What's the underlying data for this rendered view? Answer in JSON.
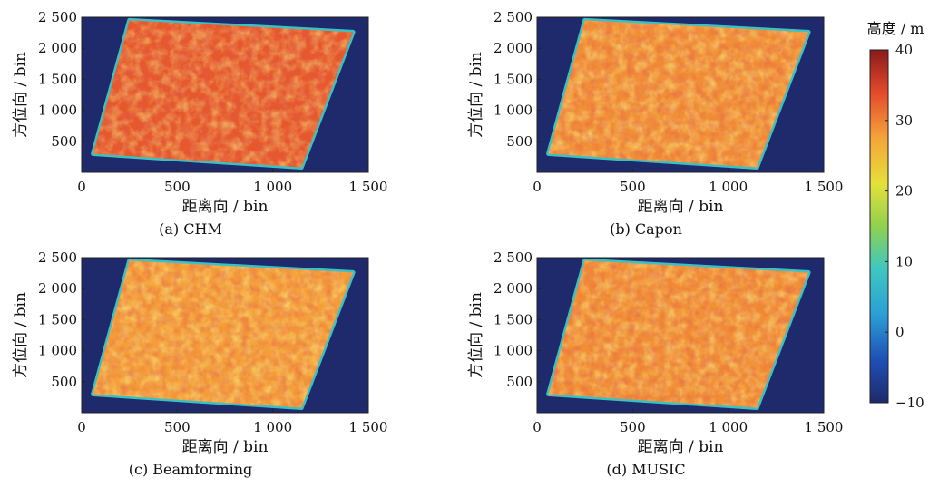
{
  "chart_data": [
    {
      "type": "heatmap",
      "caption": "(a)  CHM",
      "xlabel": "距离向 / bin",
      "ylabel": "方位向 / bin",
      "xlim": [
        0,
        1500
      ],
      "ylim": [
        0,
        2500
      ],
      "xticks": [
        0,
        500,
        1000,
        1500
      ],
      "xtick_labels": [
        "0",
        "500",
        "1 000",
        "1 500"
      ],
      "yticks": [
        500,
        1000,
        1500,
        2000,
        2500
      ],
      "ytick_labels": [
        "500",
        "1 000",
        "1 500",
        "2 000",
        "2 500"
      ],
      "background_value": -10,
      "mean_height": 33,
      "edge_value": 8,
      "footprint_corners": [
        [
          250,
          2450
        ],
        [
          1420,
          2260
        ],
        [
          1150,
          80
        ],
        [
          60,
          300
        ]
      ]
    },
    {
      "type": "heatmap",
      "caption": "(b)  Capon",
      "xlabel": "距离向 / bin",
      "ylabel": "方位向 / bin",
      "xlim": [
        0,
        1500
      ],
      "ylim": [
        0,
        2500
      ],
      "xticks": [
        0,
        500,
        1000,
        1500
      ],
      "xtick_labels": [
        "0",
        "500",
        "1 000",
        "1 500"
      ],
      "yticks": [
        500,
        1000,
        1500,
        2000,
        2500
      ],
      "ytick_labels": [
        "500",
        "1 000",
        "1 500",
        "2 000",
        "2 500"
      ],
      "background_value": -10,
      "mean_height": 29,
      "edge_value": 8,
      "footprint_corners": [
        [
          250,
          2450
        ],
        [
          1420,
          2260
        ],
        [
          1150,
          80
        ],
        [
          60,
          300
        ]
      ]
    },
    {
      "type": "heatmap",
      "caption": "(c)  Beamforming",
      "xlabel": "距离向 / bin",
      "ylabel": "方位向 / bin",
      "xlim": [
        0,
        1500
      ],
      "ylim": [
        0,
        2500
      ],
      "xticks": [
        0,
        500,
        1000,
        1500
      ],
      "xtick_labels": [
        "0",
        "500",
        "1 000",
        "1 500"
      ],
      "yticks": [
        500,
        1000,
        1500,
        2000,
        2500
      ],
      "ytick_labels": [
        "500",
        "1 000",
        "1 500",
        "2 000",
        "2 500"
      ],
      "background_value": -10,
      "mean_height": 28,
      "edge_value": 8,
      "footprint_corners": [
        [
          250,
          2450
        ],
        [
          1420,
          2260
        ],
        [
          1150,
          80
        ],
        [
          60,
          300
        ]
      ]
    },
    {
      "type": "heatmap",
      "caption": "(d)  MUSIC",
      "xlabel": "距离向 / bin",
      "ylabel": "方位向 / bin",
      "xlim": [
        0,
        1500
      ],
      "ylim": [
        0,
        2500
      ],
      "xticks": [
        0,
        500,
        1000,
        1500
      ],
      "xtick_labels": [
        "0",
        "500",
        "1 000",
        "1 500"
      ],
      "yticks": [
        500,
        1000,
        1500,
        2000,
        2500
      ],
      "ytick_labels": [
        "500",
        "1 000",
        "1 500",
        "2 000",
        "2 500"
      ],
      "background_value": -10,
      "mean_height": 29,
      "edge_value": 8,
      "footprint_corners": [
        [
          250,
          2450
        ],
        [
          1420,
          2260
        ],
        [
          1150,
          80
        ],
        [
          60,
          300
        ]
      ]
    }
  ],
  "colorbar": {
    "title": "高度 / m",
    "range": [
      -10,
      40
    ],
    "ticks": [
      40,
      30,
      20,
      10,
      0,
      -10
    ],
    "tick_labels": [
      "40",
      "30",
      "20",
      "10",
      "0",
      "−10"
    ],
    "colormap": "jet"
  }
}
